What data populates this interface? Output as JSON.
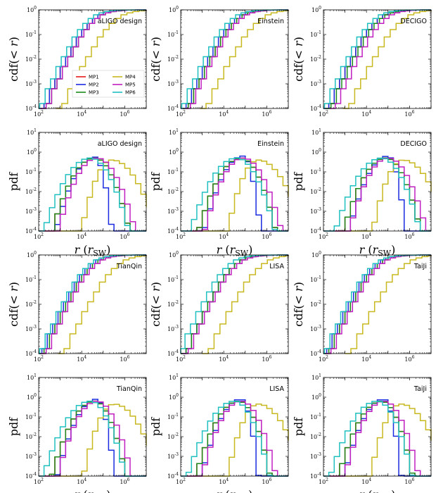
{
  "labels": {
    "cdf_ylabel": "cdf(< r)",
    "pdf_ylabel": "pdf",
    "xlabel": "r (r",
    "xlabel_sub": "SW",
    "xlabel_close": ")"
  },
  "legend": {
    "entries": [
      "MP1",
      "MP2",
      "MP3",
      "MP4",
      "MP5",
      "MP6"
    ]
  },
  "colors": {
    "MP1": "#e41a1c",
    "MP2": "#1a2be0",
    "MP3": "#1b8a1b",
    "MP4": "#c8b820",
    "MP5": "#c020c0",
    "MP6": "#20c0c0"
  },
  "chart_data": [
    {
      "type": "step-cdf",
      "kind": "cdf",
      "detector": "aLIGO design",
      "xscale": "log",
      "yscale": "log",
      "xlim": [
        100,
        10000000
      ],
      "ylim": [
        0.0001,
        1
      ],
      "x_ticks": [
        "10^2",
        "10^4",
        "10^6"
      ],
      "y_ticks": [
        "10^-4",
        "10^-3",
        "10^-2",
        "10^-1",
        "10^0"
      ],
      "legend": "bottom-right",
      "series": [
        {
          "name": "MP1",
          "x_offset": 0.0
        },
        {
          "name": "MP2",
          "x_offset": 0.0
        },
        {
          "name": "MP3",
          "x_offset": 0.1
        },
        {
          "name": "MP4",
          "x_offset": 0.8
        },
        {
          "name": "MP5",
          "x_offset": 0.1
        },
        {
          "name": "MP6",
          "x_offset": -0.2
        }
      ]
    },
    {
      "type": "step-cdf",
      "kind": "cdf",
      "detector": "Einstein",
      "xscale": "log",
      "yscale": "log",
      "xlim": [
        100,
        10000000
      ],
      "ylim": [
        0.0001,
        1
      ],
      "x_ticks": [
        "10^2",
        "10^4",
        "10^6"
      ],
      "y_ticks": [
        "10^-4",
        "10^-3",
        "10^-2",
        "10^-1",
        "10^0"
      ],
      "series": [
        {
          "name": "MP1",
          "x_offset": 0.1
        },
        {
          "name": "MP2",
          "x_offset": 0.0
        },
        {
          "name": "MP3",
          "x_offset": 0.1
        },
        {
          "name": "MP4",
          "x_offset": 0.9
        },
        {
          "name": "MP5",
          "x_offset": 0.2
        },
        {
          "name": "MP6",
          "x_offset": -0.2
        }
      ]
    },
    {
      "type": "step-cdf",
      "kind": "cdf",
      "detector": "DECIGO",
      "xscale": "log",
      "yscale": "log",
      "xlim": [
        100,
        10000000
      ],
      "ylim": [
        0.0001,
        1
      ],
      "x_ticks": [
        "10^2",
        "10^4",
        "10^6"
      ],
      "y_ticks": [
        "10^-4",
        "10^-3",
        "10^-2",
        "10^-1",
        "10^0"
      ],
      "series": [
        {
          "name": "MP1",
          "x_offset": 0.0
        },
        {
          "name": "MP2",
          "x_offset": 0.0
        },
        {
          "name": "MP3",
          "x_offset": 0.1
        },
        {
          "name": "MP4",
          "x_offset": 0.9
        },
        {
          "name": "MP5",
          "x_offset": 0.3
        },
        {
          "name": "MP6",
          "x_offset": -0.2
        }
      ]
    },
    {
      "type": "step-pdf",
      "kind": "pdf",
      "detector": "aLIGO design",
      "xscale": "log",
      "yscale": "log",
      "xlim": [
        100,
        10000000
      ],
      "ylim": [
        0.0001,
        10
      ],
      "x_ticks": [
        "10^2",
        "10^4",
        "10^6"
      ],
      "y_ticks": [
        "10^-4",
        "10^-3",
        "10^-2",
        "10^-1",
        "10^0",
        "10^1"
      ],
      "series": [
        {
          "name": "MP1",
          "peak": [
            4.6,
            -0.3
          ],
          "width": [
            1.1,
            0.9
          ]
        },
        {
          "name": "MP2",
          "peak": [
            4.6,
            -0.25
          ],
          "width": [
            1.0,
            0.45
          ]
        },
        {
          "name": "MP3",
          "peak": [
            4.6,
            -0.3
          ],
          "width": [
            1.1,
            0.9
          ]
        },
        {
          "name": "MP4",
          "peak": [
            5.4,
            -0.4
          ],
          "width": [
            0.8,
            1.2
          ]
        },
        {
          "name": "MP5",
          "peak": [
            4.7,
            -0.3
          ],
          "width": [
            1.0,
            1.0
          ]
        },
        {
          "name": "MP6",
          "peak": [
            4.4,
            -0.3
          ],
          "width": [
            1.2,
            1.0
          ]
        }
      ]
    },
    {
      "type": "step-pdf",
      "kind": "pdf",
      "detector": "Einstein",
      "xscale": "log",
      "yscale": "log",
      "xlim": [
        100,
        10000000
      ],
      "ylim": [
        0.0001,
        10
      ],
      "x_ticks": [
        "10^2",
        "10^4",
        "10^6"
      ],
      "y_ticks": [
        "10^-4",
        "10^-3",
        "10^-2",
        "10^-1",
        "10^0",
        "10^1"
      ],
      "series": [
        {
          "name": "MP1",
          "peak": [
            4.8,
            -0.3
          ],
          "width": [
            1.1,
            0.9
          ]
        },
        {
          "name": "MP2",
          "peak": [
            4.9,
            -0.2
          ],
          "width": [
            1.0,
            0.45
          ]
        },
        {
          "name": "MP3",
          "peak": [
            4.8,
            -0.3
          ],
          "width": [
            1.1,
            0.9
          ]
        },
        {
          "name": "MP4",
          "peak": [
            5.6,
            -0.4
          ],
          "width": [
            0.8,
            1.2
          ]
        },
        {
          "name": "MP5",
          "peak": [
            4.9,
            -0.3
          ],
          "width": [
            1.0,
            1.0
          ]
        },
        {
          "name": "MP6",
          "peak": [
            4.6,
            -0.3
          ],
          "width": [
            1.2,
            1.0
          ]
        }
      ]
    },
    {
      "type": "step-pdf",
      "kind": "pdf",
      "detector": "DECIGO",
      "xscale": "log",
      "yscale": "log",
      "xlim": [
        100,
        10000000
      ],
      "ylim": [
        0.0001,
        10
      ],
      "x_ticks": [
        "10^2",
        "10^4",
        "10^6"
      ],
      "y_ticks": [
        "10^-4",
        "10^-3",
        "10^-2",
        "10^-1",
        "10^0",
        "10^1"
      ],
      "series": [
        {
          "name": "MP1",
          "peak": [
            4.9,
            -0.3
          ],
          "width": [
            1.1,
            0.9
          ]
        },
        {
          "name": "MP2",
          "peak": [
            5.0,
            -0.2
          ],
          "width": [
            1.0,
            0.45
          ]
        },
        {
          "name": "MP3",
          "peak": [
            4.9,
            -0.3
          ],
          "width": [
            1.1,
            0.9
          ]
        },
        {
          "name": "MP4",
          "peak": [
            5.7,
            -0.4
          ],
          "width": [
            0.8,
            1.2
          ]
        },
        {
          "name": "MP5",
          "peak": [
            5.0,
            -0.3
          ],
          "width": [
            1.0,
            1.0
          ]
        },
        {
          "name": "MP6",
          "peak": [
            4.7,
            -0.3
          ],
          "width": [
            1.2,
            1.0
          ]
        }
      ]
    },
    {
      "type": "step-cdf",
      "kind": "cdf",
      "detector": "TianQin",
      "xscale": "log",
      "yscale": "log",
      "xlim": [
        100,
        10000000
      ],
      "ylim": [
        0.0001,
        1
      ],
      "x_ticks": [
        "10^2",
        "10^4",
        "10^6"
      ],
      "y_ticks": [
        "10^-4",
        "10^-3",
        "10^-2",
        "10^-1",
        "10^0"
      ],
      "series": [
        {
          "name": "MP1",
          "x_offset": 0.0
        },
        {
          "name": "MP2",
          "x_offset": -0.1
        },
        {
          "name": "MP3",
          "x_offset": 0.0
        },
        {
          "name": "MP4",
          "x_offset": 0.9
        },
        {
          "name": "MP5",
          "x_offset": 0.1
        },
        {
          "name": "MP6",
          "x_offset": -0.2
        }
      ]
    },
    {
      "type": "step-cdf",
      "kind": "cdf",
      "detector": "LISA",
      "xscale": "log",
      "yscale": "log",
      "xlim": [
        100,
        10000000
      ],
      "ylim": [
        0.0001,
        1
      ],
      "x_ticks": [
        "10^2",
        "10^4",
        "10^6"
      ],
      "y_ticks": [
        "10^-4",
        "10^-3",
        "10^-2",
        "10^-1",
        "10^0"
      ],
      "series": [
        {
          "name": "MP1",
          "x_offset": 0.0
        },
        {
          "name": "MP2",
          "x_offset": 0.0
        },
        {
          "name": "MP3",
          "x_offset": 0.0
        },
        {
          "name": "MP4",
          "x_offset": 1.0
        },
        {
          "name": "MP5",
          "x_offset": 0.1
        },
        {
          "name": "MP6",
          "x_offset": -0.3
        }
      ]
    },
    {
      "type": "step-cdf",
      "kind": "cdf",
      "detector": "TaiJi",
      "xscale": "log",
      "yscale": "log",
      "xlim": [
        100,
        10000000
      ],
      "ylim": [
        0.0001,
        1
      ],
      "x_ticks": [
        "10^2",
        "10^4",
        "10^6"
      ],
      "y_ticks": [
        "10^-4",
        "10^-3",
        "10^-2",
        "10^-1",
        "10^0"
      ],
      "series": [
        {
          "name": "MP1",
          "x_offset": 0.0
        },
        {
          "name": "MP2",
          "x_offset": -0.1
        },
        {
          "name": "MP3",
          "x_offset": 0.0
        },
        {
          "name": "MP4",
          "x_offset": 1.0
        },
        {
          "name": "MP5",
          "x_offset": 0.1
        },
        {
          "name": "MP6",
          "x_offset": -0.2
        }
      ]
    },
    {
      "type": "step-pdf",
      "kind": "pdf",
      "detector": "TianQin",
      "xscale": "log",
      "yscale": "log",
      "xlim": [
        100,
        10000000
      ],
      "ylim": [
        0.0001,
        10
      ],
      "x_ticks": [
        "10^2",
        "10^4",
        "10^6"
      ],
      "y_ticks": [
        "10^-4",
        "10^-3",
        "10^-2",
        "10^-1",
        "10^0",
        "10^1"
      ],
      "series": [
        {
          "name": "MP1",
          "peak": [
            4.6,
            -0.2
          ],
          "width": [
            1.1,
            0.8
          ]
        },
        {
          "name": "MP2",
          "peak": [
            4.7,
            -0.1
          ],
          "width": [
            1.0,
            0.45
          ]
        },
        {
          "name": "MP3",
          "peak": [
            4.6,
            -0.2
          ],
          "width": [
            1.1,
            0.8
          ]
        },
        {
          "name": "MP4",
          "peak": [
            5.5,
            -0.35
          ],
          "width": [
            0.8,
            1.2
          ]
        },
        {
          "name": "MP5",
          "peak": [
            4.7,
            -0.2
          ],
          "width": [
            1.0,
            0.9
          ]
        },
        {
          "name": "MP6",
          "peak": [
            4.4,
            -0.2
          ],
          "width": [
            1.2,
            0.9
          ]
        }
      ]
    },
    {
      "type": "step-pdf",
      "kind": "pdf",
      "detector": "LISA",
      "xscale": "log",
      "yscale": "log",
      "xlim": [
        100,
        10000000
      ],
      "ylim": [
        0.0001,
        10
      ],
      "x_ticks": [
        "10^2",
        "10^4",
        "10^6"
      ],
      "y_ticks": [
        "10^-4",
        "10^-3",
        "10^-2",
        "10^-1",
        "10^0",
        "10^1"
      ],
      "series": [
        {
          "name": "MP1",
          "peak": [
            4.7,
            -0.2
          ],
          "width": [
            1.1,
            0.8
          ]
        },
        {
          "name": "MP2",
          "peak": [
            4.8,
            -0.1
          ],
          "width": [
            1.0,
            0.45
          ]
        },
        {
          "name": "MP3",
          "peak": [
            4.7,
            -0.2
          ],
          "width": [
            1.1,
            0.8
          ]
        },
        {
          "name": "MP4",
          "peak": [
            5.6,
            -0.35
          ],
          "width": [
            0.8,
            1.2
          ]
        },
        {
          "name": "MP5",
          "peak": [
            4.8,
            -0.2
          ],
          "width": [
            1.0,
            0.9
          ]
        },
        {
          "name": "MP6",
          "peak": [
            4.5,
            -0.2
          ],
          "width": [
            1.2,
            0.9
          ]
        }
      ]
    },
    {
      "type": "step-pdf",
      "kind": "pdf",
      "detector": "TaiJi",
      "xscale": "log",
      "yscale": "log",
      "xlim": [
        100,
        10000000
      ],
      "ylim": [
        0.0001,
        10
      ],
      "x_ticks": [
        "10^2",
        "10^4",
        "10^6"
      ],
      "y_ticks": [
        "10^-4",
        "10^-3",
        "10^-2",
        "10^-1",
        "10^0",
        "10^1"
      ],
      "series": [
        {
          "name": "MP1",
          "peak": [
            4.7,
            -0.2
          ],
          "width": [
            1.1,
            0.8
          ]
        },
        {
          "name": "MP2",
          "peak": [
            4.8,
            -0.1
          ],
          "width": [
            1.0,
            0.45
          ]
        },
        {
          "name": "MP3",
          "peak": [
            4.7,
            -0.2
          ],
          "width": [
            1.1,
            0.8
          ]
        },
        {
          "name": "MP4",
          "peak": [
            5.6,
            -0.35
          ],
          "width": [
            0.8,
            1.2
          ]
        },
        {
          "name": "MP5",
          "peak": [
            4.8,
            -0.2
          ],
          "width": [
            1.0,
            0.9
          ]
        },
        {
          "name": "MP6",
          "peak": [
            4.5,
            -0.2
          ],
          "width": [
            1.2,
            0.9
          ]
        }
      ]
    }
  ]
}
